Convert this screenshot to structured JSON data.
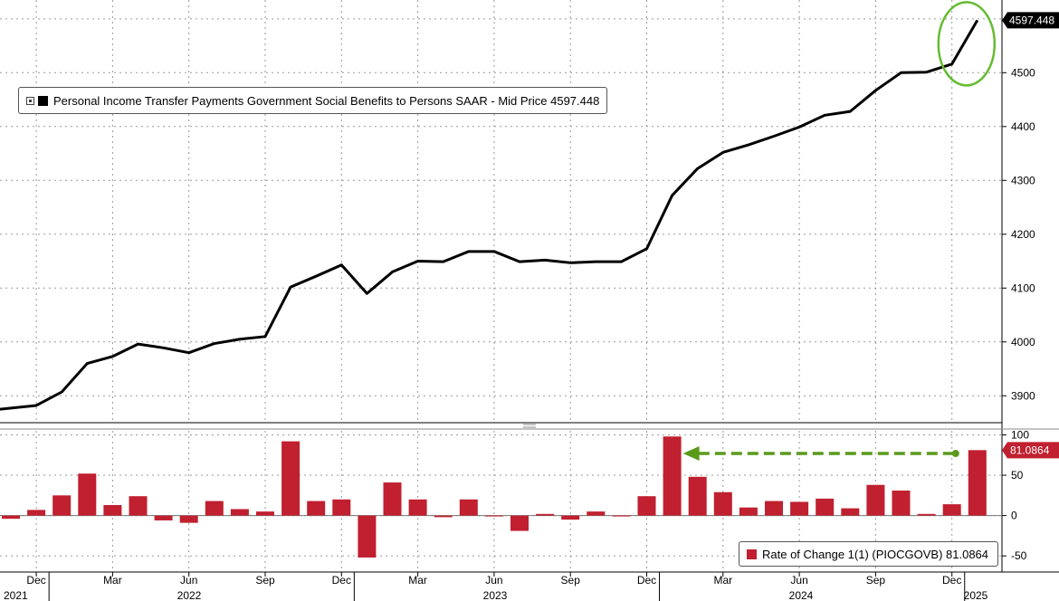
{
  "colors": {
    "line": "#000000",
    "bars": "#c0202f",
    "annotation": "#5a9a1b",
    "grid": "#9a9a9a"
  },
  "chart_data": [
    {
      "type": "line",
      "legend": {
        "label": "Personal Income Transfer Payments Government Social Benefits to Persons SAAR - Mid Price 4597.448",
        "placement": "top-left"
      },
      "last_value_label": "4597.448",
      "ylim": [
        3850,
        4635
      ],
      "y_ticks": [
        3900,
        4000,
        4100,
        4200,
        4300,
        4400,
        4500
      ],
      "grid": true,
      "x": [
        "2021-11",
        "2021-12",
        "2022-01",
        "2022-02",
        "2022-03",
        "2022-04",
        "2022-05",
        "2022-06",
        "2022-07",
        "2022-08",
        "2022-09",
        "2022-10",
        "2022-11",
        "2022-12",
        "2023-01",
        "2023-02",
        "2023-03",
        "2023-04",
        "2023-05",
        "2023-06",
        "2023-07",
        "2023-08",
        "2023-09",
        "2023-10",
        "2023-11",
        "2023-12",
        "2024-01",
        "2024-02",
        "2024-03",
        "2024-04",
        "2024-05",
        "2024-06",
        "2024-07",
        "2024-08",
        "2024-09",
        "2024-10",
        "2024-11",
        "2024-12",
        "2025-01"
      ],
      "values": [
        3875,
        3882,
        3907,
        3960,
        3973,
        3996,
        3989,
        3980,
        3997,
        4005,
        4010,
        4102,
        4122,
        4143,
        4090,
        4130,
        4150,
        4149,
        4168,
        4168,
        4149,
        4152,
        4147,
        4149,
        4149,
        4173,
        4272,
        4322,
        4352,
        4366,
        4382,
        4399,
        4421,
        4428,
        4467,
        4500,
        4501,
        4516,
        4597.448
      ],
      "annotation": "ellipse around latest point"
    },
    {
      "type": "bar",
      "legend": {
        "label": "Rate of Change 1(1) (PIOCGOVB) 81.0864",
        "placement": "bottom-right"
      },
      "last_value_label": "81.0864",
      "ylim": [
        -70,
        105
      ],
      "y_ticks": [
        100,
        50,
        0,
        -50
      ],
      "grid": true,
      "x": [
        "2021-11",
        "2021-12",
        "2022-01",
        "2022-02",
        "2022-03",
        "2022-04",
        "2022-05",
        "2022-06",
        "2022-07",
        "2022-08",
        "2022-09",
        "2022-10",
        "2022-11",
        "2022-12",
        "2023-01",
        "2023-02",
        "2023-03",
        "2023-04",
        "2023-05",
        "2023-06",
        "2023-07",
        "2023-08",
        "2023-09",
        "2023-10",
        "2023-11",
        "2023-12",
        "2024-01",
        "2024-02",
        "2024-03",
        "2024-04",
        "2024-05",
        "2024-06",
        "2024-07",
        "2024-08",
        "2024-09",
        "2024-10",
        "2024-11",
        "2024-12",
        "2025-01"
      ],
      "values": [
        -4,
        7,
        25,
        52,
        13,
        24,
        -6,
        -9,
        18,
        8,
        5,
        92,
        18,
        20,
        -52,
        41,
        20,
        -2,
        20,
        0,
        -19,
        2,
        -5,
        5,
        0,
        24,
        98,
        48,
        29,
        10,
        18,
        17,
        21,
        9,
        38,
        31,
        2,
        14,
        81.0864
      ],
      "annotation": "dashed arrow from latest bar back to 2024-01 peak"
    }
  ],
  "x_axis": {
    "month_ticks": [
      "Dec",
      "Mar",
      "Jun",
      "Sep",
      "Dec",
      "Mar",
      "Jun",
      "Sep",
      "Dec",
      "Mar",
      "Jun",
      "Sep",
      "Dec"
    ],
    "year_labels": [
      "2021",
      "2022",
      "2023",
      "2024",
      "2025"
    ]
  }
}
